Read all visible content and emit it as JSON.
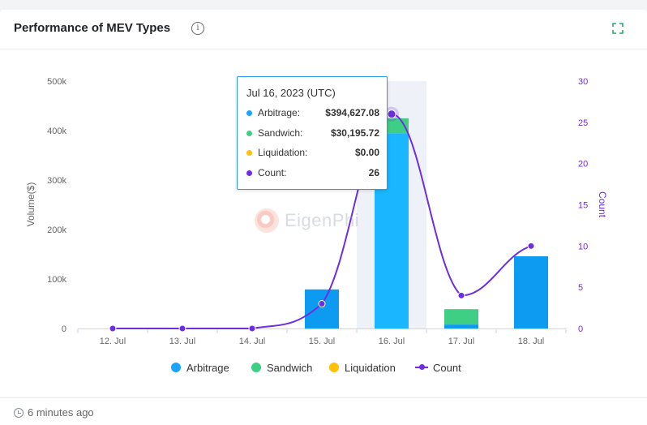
{
  "header": {
    "title": "Performance of MEV Types",
    "info_icon": "info-icon",
    "expand_icon": "expand-icon"
  },
  "tooltip": {
    "date": "Jul 16, 2023 (UTC)",
    "rows": [
      {
        "label": "Arbitrage:",
        "value": "$394,627.08",
        "color": "#1aa3ff"
      },
      {
        "label": "Sandwich:",
        "value": "$30,195.72",
        "color": "#3ecf84"
      },
      {
        "label": "Liquidation:",
        "value": "$0.00",
        "color": "#ffc107"
      },
      {
        "label": "Count:",
        "value": "26",
        "color": "#6d2ee0"
      }
    ]
  },
  "watermark": "EigenPhi",
  "footer": {
    "updated": "6 minutes ago"
  },
  "chart_data": {
    "type": "bar",
    "categories": [
      "12. Jul",
      "13. Jul",
      "14. Jul",
      "15. Jul",
      "16. Jul",
      "17. Jul",
      "18. Jul"
    ],
    "series": [
      {
        "name": "Arbitrage",
        "type": "bar",
        "axis": "left",
        "color": "#0d9bf2",
        "values": [
          0,
          0,
          0,
          79000,
          394627.08,
          8000,
          146000
        ]
      },
      {
        "name": "Sandwich",
        "type": "bar",
        "axis": "left",
        "color": "#3ecf84",
        "values": [
          0,
          0,
          0,
          0,
          30195.72,
          31000,
          0
        ]
      },
      {
        "name": "Liquidation",
        "type": "bar",
        "axis": "left",
        "color": "#ffc107",
        "values": [
          0,
          0,
          0,
          0,
          0,
          0,
          0
        ]
      },
      {
        "name": "Count",
        "type": "line",
        "axis": "right",
        "color": "#6d2ee0",
        "values": [
          0,
          0,
          0,
          3,
          26,
          4,
          10
        ]
      }
    ],
    "ylabel": "Volume($)",
    "y2label": "Count",
    "ylim": [
      0,
      500000
    ],
    "y2lim": [
      0,
      30
    ],
    "yticks": [
      "0",
      "100k",
      "200k",
      "300k",
      "400k",
      "500k"
    ],
    "y2ticks": [
      "0",
      "5",
      "10",
      "15",
      "20",
      "25",
      "30"
    ],
    "highlight_category": "16. Jul",
    "highlight_color": "#1ab6ff",
    "legend_position": "bottom",
    "grid": false
  }
}
